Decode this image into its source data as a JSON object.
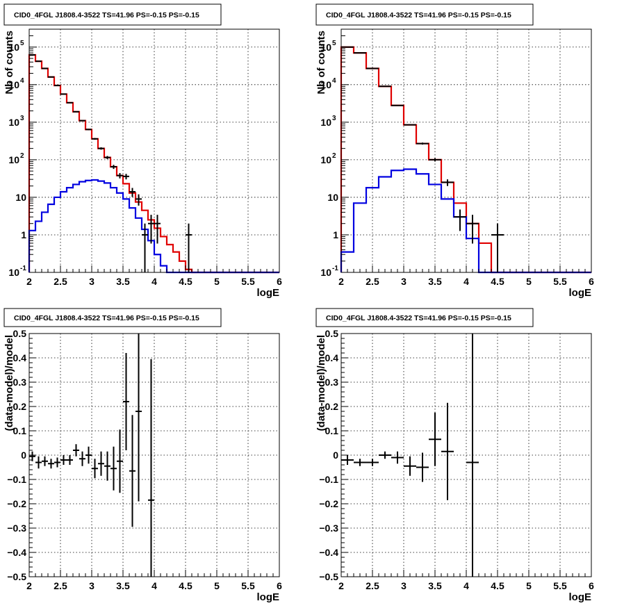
{
  "colors": {
    "data": "#000000",
    "total_model": "#e00000",
    "source_model": "#0000e0",
    "grid": "#000000",
    "frame": "#000000"
  },
  "chart_data": [
    {
      "type": "line",
      "title": "CID0_4FGL J1808.4-3522 TS=41.96 PS=-0.15 PS=-0.15",
      "xlabel": "logE",
      "ylabel": "Nb of counts",
      "xlim": [
        2,
        6
      ],
      "ylim": [
        0.1,
        300000
      ],
      "yscale": "log",
      "grid": true,
      "x_ticks": [
        "2",
        "2.5",
        "3",
        "3.5",
        "4",
        "4.5",
        "5",
        "5.5",
        "6"
      ],
      "y_ticks": [
        "10^-1",
        "1",
        "10",
        "10^2",
        "10^3",
        "10^4",
        "10^5"
      ],
      "bin_edges": [
        2.0,
        2.1,
        2.2,
        2.3,
        2.4,
        2.5,
        2.6,
        2.7,
        2.8,
        2.9,
        3.0,
        3.1,
        3.2,
        3.3,
        3.4,
        3.5,
        3.6,
        3.7,
        3.8,
        3.9,
        4.0,
        4.1,
        4.2,
        4.3,
        4.4,
        4.5,
        4.6,
        4.7,
        4.8,
        4.9,
        5.0,
        5.1,
        5.2,
        5.3,
        5.4,
        5.5,
        5.6,
        5.7,
        5.8,
        5.9,
        6.0
      ],
      "series": [
        {
          "role": "total_model",
          "values": [
            62000,
            42000,
            27000,
            16000,
            9500,
            5600,
            3300,
            1900,
            1100,
            640,
            360,
            200,
            115,
            65,
            38,
            23,
            13,
            7.5,
            4.5,
            2.5,
            1.5,
            0.9,
            0.55,
            0.35,
            0.2,
            0.12,
            0.1,
            0.1,
            0.1,
            0.1,
            0.1,
            0.1,
            0.1,
            0.1,
            0.1,
            0.1,
            0.1,
            0.1,
            0.1,
            0.1
          ]
        },
        {
          "role": "source_model",
          "values": [
            1.3,
            2.3,
            4,
            6.5,
            10,
            14,
            18,
            22,
            26,
            28,
            29,
            27,
            24,
            18,
            13,
            9,
            5.2,
            2.8,
            1.4,
            0.7,
            0.3,
            0.15,
            0.1,
            0.1,
            0.1,
            0.1,
            0.1,
            0.1,
            0.1,
            0.1,
            0.1,
            0.1,
            0.1,
            0.1,
            0.1,
            0.1,
            0.1,
            0.1,
            0.1,
            0.1
          ]
        },
        {
          "role": "data",
          "points": [
            [
              2.05,
              62000
            ],
            [
              2.15,
              42000
            ],
            [
              2.25,
              27000
            ],
            [
              2.35,
              16000
            ],
            [
              2.45,
              9500
            ],
            [
              2.55,
              5600
            ],
            [
              2.65,
              3300
            ],
            [
              2.75,
              1900
            ],
            [
              2.85,
              1100
            ],
            [
              2.95,
              640
            ],
            [
              3.05,
              360
            ],
            [
              3.15,
              200
            ],
            [
              3.25,
              115
            ],
            [
              3.35,
              65
            ],
            [
              3.45,
              38
            ],
            [
              3.55,
              36
            ],
            [
              3.65,
              14
            ],
            [
              3.75,
              9
            ],
            [
              3.85,
              1
            ],
            [
              3.95,
              2
            ],
            [
              4.05,
              2
            ],
            [
              4.55,
              1
            ]
          ]
        }
      ]
    },
    {
      "type": "line",
      "title": "CID0_4FGL J1808.4-3522 TS=41.96 PS=-0.15 PS=-0.15",
      "xlabel": "logE",
      "ylabel": "Nb of counts",
      "xlim": [
        2,
        6
      ],
      "ylim": [
        0.1,
        300000
      ],
      "yscale": "log",
      "grid": true,
      "x_ticks": [
        "2",
        "2.5",
        "3",
        "3.5",
        "4",
        "4.5",
        "5",
        "5.5",
        "6"
      ],
      "y_ticks": [
        "10^-1",
        "1",
        "10",
        "10^2",
        "10^3",
        "10^4",
        "10^5"
      ],
      "bin_edges": [
        2.0,
        2.2,
        2.4,
        2.6,
        2.8,
        3.0,
        3.2,
        3.4,
        3.6,
        3.8,
        4.0,
        4.2,
        4.4,
        4.6,
        4.8,
        5.0,
        5.2,
        5.4,
        5.6,
        5.8,
        6.0
      ],
      "series": [
        {
          "role": "total_model",
          "values": [
            100000,
            70000,
            27000,
            9000,
            2800,
            850,
            270,
            100,
            25,
            7,
            2,
            0.6,
            0.1,
            0.1,
            0.1,
            0.1,
            0.1,
            0.1,
            0.1,
            0.1
          ]
        },
        {
          "role": "source_model",
          "values": [
            0.35,
            7,
            18,
            35,
            52,
            56,
            42,
            22,
            9,
            3,
            0.8,
            0.1,
            0.1,
            0.1,
            0.1,
            0.1,
            0.1,
            0.1,
            0.1,
            0.1
          ]
        },
        {
          "role": "data",
          "points": [
            [
              2.1,
              100000
            ],
            [
              2.3,
              70000
            ],
            [
              2.5,
              27000
            ],
            [
              2.7,
              9000
            ],
            [
              2.9,
              2800
            ],
            [
              3.1,
              850
            ],
            [
              3.3,
              270
            ],
            [
              3.5,
              100
            ],
            [
              3.7,
              25
            ],
            [
              3.9,
              3
            ],
            [
              4.1,
              2
            ],
            [
              4.5,
              1
            ]
          ]
        }
      ]
    },
    {
      "type": "scatter",
      "title": "CID0_4FGL J1808.4-3522 TS=41.96 PS=-0.15 PS=-0.15",
      "xlabel": "logE",
      "ylabel": "(data-model)/model",
      "xlim": [
        2,
        6
      ],
      "ylim": [
        -0.5,
        0.5
      ],
      "grid": true,
      "x_ticks": [
        "2",
        "2.5",
        "3",
        "3.5",
        "4",
        "4.5",
        "5",
        "5.5",
        "6"
      ],
      "y_ticks": [
        "−0.5",
        "−0.4",
        "−0.3",
        "−0.2",
        "−0.1",
        "0",
        "0.1",
        "0.2",
        "0.3",
        "0.4",
        "0.5"
      ],
      "bin_width": 0.1,
      "points": [
        {
          "x": 2.05,
          "y": -0.005,
          "err": 0.02
        },
        {
          "x": 2.15,
          "y": -0.03,
          "err": 0.025
        },
        {
          "x": 2.25,
          "y": -0.025,
          "err": 0.02
        },
        {
          "x": 2.35,
          "y": -0.035,
          "err": 0.02
        },
        {
          "x": 2.45,
          "y": -0.03,
          "err": 0.02
        },
        {
          "x": 2.55,
          "y": -0.02,
          "err": 0.02
        },
        {
          "x": 2.65,
          "y": -0.02,
          "err": 0.02
        },
        {
          "x": 2.75,
          "y": 0.02,
          "err": 0.025
        },
        {
          "x": 2.85,
          "y": -0.015,
          "err": 0.03
        },
        {
          "x": 2.95,
          "y": 0.0,
          "err": 0.035
        },
        {
          "x": 3.05,
          "y": -0.055,
          "err": 0.04
        },
        {
          "x": 3.15,
          "y": -0.035,
          "err": 0.05
        },
        {
          "x": 3.25,
          "y": -0.045,
          "err": 0.06
        },
        {
          "x": 3.35,
          "y": -0.055,
          "err": 0.09
        },
        {
          "x": 3.45,
          "y": -0.025,
          "err": 0.13
        },
        {
          "x": 3.55,
          "y": 0.22,
          "err": 0.2
        },
        {
          "x": 3.65,
          "y": -0.065,
          "err": 0.23
        },
        {
          "x": 3.75,
          "y": 0.18,
          "err": 0.37
        },
        {
          "x": 3.95,
          "y": -0.185,
          "err": 0.58
        }
      ]
    },
    {
      "type": "scatter",
      "title": "CID0_4FGL J1808.4-3522 TS=41.96 PS=-0.15 PS=-0.15",
      "xlabel": "logE",
      "ylabel": "(data-model)/model",
      "xlim": [
        2,
        6
      ],
      "ylim": [
        -0.5,
        0.5
      ],
      "grid": true,
      "x_ticks": [
        "2",
        "2.5",
        "3",
        "3.5",
        "4",
        "4.5",
        "5",
        "5.5",
        "6"
      ],
      "y_ticks": [
        "−0.5",
        "−0.4",
        "−0.3",
        "−0.2",
        "−0.1",
        "0",
        "0.1",
        "0.2",
        "0.3",
        "0.4",
        "0.5"
      ],
      "bin_width": 0.2,
      "points": [
        {
          "x": 2.1,
          "y": -0.02,
          "err": 0.02
        },
        {
          "x": 2.3,
          "y": -0.03,
          "err": 0.015
        },
        {
          "x": 2.5,
          "y": -0.03,
          "err": 0.015
        },
        {
          "x": 2.7,
          "y": 0.0,
          "err": 0.015
        },
        {
          "x": 2.9,
          "y": -0.01,
          "err": 0.025
        },
        {
          "x": 3.1,
          "y": -0.045,
          "err": 0.04
        },
        {
          "x": 3.3,
          "y": -0.05,
          "err": 0.06
        },
        {
          "x": 3.5,
          "y": 0.065,
          "err": 0.11
        },
        {
          "x": 3.7,
          "y": 0.015,
          "err": 0.2
        },
        {
          "x": 4.1,
          "y": -0.03,
          "err": 0.6
        }
      ]
    }
  ]
}
